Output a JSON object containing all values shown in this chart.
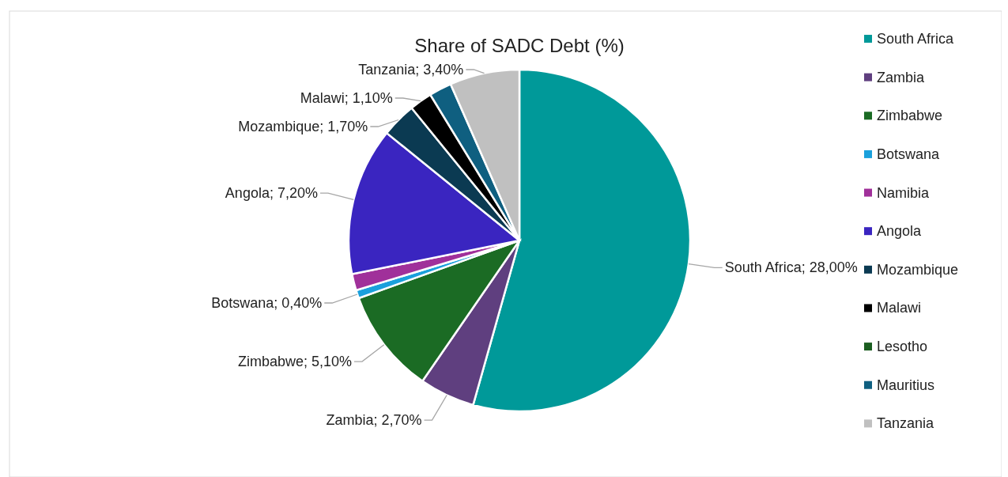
{
  "chart_data": {
    "type": "pie",
    "title": "Share of SADC Debt (%)",
    "categories": [
      "South Africa",
      "Zambia",
      "Zimbabwe",
      "Botswana",
      "Namibia",
      "Angola",
      "Mozambique",
      "Malawi",
      "Lesotho",
      "Mauritius",
      "Tanzania"
    ],
    "values": [
      28.0,
      2.7,
      5.1,
      0.4,
      0.8,
      7.2,
      1.7,
      1.1,
      null,
      1.1,
      3.4
    ],
    "colors": [
      "#009999",
      "#5f3f7f",
      "#1b6b24",
      "#1aa0dc",
      "#a0309a",
      "#3a25c0",
      "#0b3a52",
      "#000000",
      "#1b5e20",
      "#0f5f80",
      "#c0c0c0"
    ],
    "value_labels": [
      "South Africa; 28,00%",
      "Zambia; 2,70%",
      "Zimbabwe; 5,10%",
      "Botswana; 0,40%",
      null,
      "Angola; 7,20%",
      "Mozambique; 1,70%",
      "Malawi; 1,10%",
      null,
      null,
      "Tanzania; 3,40%"
    ],
    "legend": "right"
  }
}
